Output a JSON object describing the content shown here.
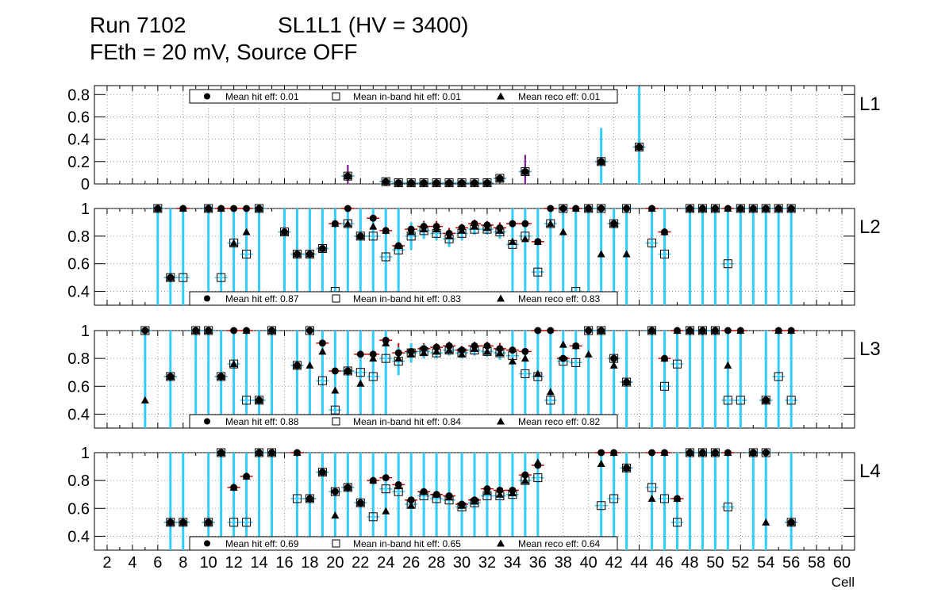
{
  "header": {
    "run": "Run 7102",
    "chamber": "SL1L1 (HV = 3400)",
    "conditions": "FEth = 20 mV, Source OFF"
  },
  "chart_data": {
    "type": "scatter",
    "xlabel": "Cell",
    "xlim": [
      1,
      61
    ],
    "x_ticks": [
      "2",
      "4",
      "6",
      "8",
      "10",
      "12",
      "14",
      "16",
      "18",
      "20",
      "22",
      "24",
      "26",
      "28",
      "30",
      "32",
      "34",
      "36",
      "38",
      "40",
      "42",
      "44",
      "46",
      "48",
      "50",
      "52",
      "54",
      "56",
      "58",
      "60"
    ],
    "colors": {
      "hit_err": "#cc0000",
      "reco_err": "#7a1fa2",
      "inband_err": "#33ccff"
    },
    "series_names": [
      "Mean hit  eff",
      "Mean in-band hit eff",
      "Mean reco eff"
    ],
    "panels": [
      {
        "label": "L1",
        "ylim": [
          0,
          0.88
        ],
        "y_ticks": [
          "0",
          "0.2",
          "0.4",
          "0.6",
          "0.8"
        ],
        "legend": [
          "Mean hit  eff: 0.01",
          "Mean in-band hit eff: 0.01",
          "Mean reco eff: 0.01"
        ],
        "cells": [
          21,
          24,
          25,
          26,
          27,
          28,
          29,
          30,
          31,
          32,
          33,
          35,
          41,
          44
        ],
        "hit": [
          0.07,
          0.02,
          0.01,
          0.01,
          0.01,
          0.01,
          0.01,
          0.01,
          0.01,
          0.01,
          0.05,
          0.11,
          0.2,
          0.33
        ],
        "hit_err": [
          0.1,
          0.02,
          0.01,
          0.01,
          0.01,
          0.01,
          0.01,
          0.01,
          0.01,
          0.01,
          0.02,
          0.15,
          0.3,
          0.5
        ],
        "inband": [
          0.07,
          0.02,
          0.01,
          0.01,
          0.01,
          0.01,
          0.01,
          0.01,
          0.01,
          0.01,
          0.05,
          0.11,
          0.2,
          0.33
        ],
        "inband_err": [
          0.02,
          0.02,
          0.01,
          0.01,
          0.01,
          0.01,
          0.01,
          0.01,
          0.01,
          0.01,
          0.02,
          0.03,
          0.3,
          0.54
        ],
        "reco": [
          0.07,
          0.02,
          0.01,
          0.01,
          0.01,
          0.01,
          0.01,
          0.01,
          0.01,
          0.01,
          0.05,
          0.11,
          0.2,
          0.33
        ]
      },
      {
        "label": "L2",
        "ylim": [
          0.3,
          1.0
        ],
        "y_ticks": [
          "0.4",
          "0.6",
          "0.8",
          "1"
        ],
        "legend": [
          "Mean hit  eff: 0.87",
          "Mean in-band hit eff: 0.83",
          "Mean reco eff: 0.83"
        ],
        "cells": [
          6,
          7,
          8,
          10,
          11,
          12,
          13,
          14,
          16,
          17,
          18,
          19,
          20,
          21,
          22,
          23,
          24,
          25,
          26,
          27,
          28,
          29,
          30,
          31,
          32,
          33,
          34,
          35,
          36,
          37,
          38,
          39,
          40,
          41,
          42,
          43,
          45,
          46,
          48,
          49,
          50,
          51,
          52,
          53,
          54,
          55,
          56
        ],
        "hit": [
          1.0,
          0.5,
          1.0,
          1.0,
          1.0,
          1.0,
          1.0,
          1.0,
          0.83,
          0.67,
          0.67,
          0.71,
          0.89,
          1.0,
          0.8,
          0.93,
          0.84,
          0.73,
          0.85,
          0.87,
          0.87,
          0.82,
          0.86,
          0.89,
          0.88,
          0.86,
          0.89,
          0.89,
          0.76,
          1.0,
          1.0,
          1.0,
          1.0,
          1.0,
          0.89,
          1.0,
          1.0,
          0.83,
          1.0,
          1.0,
          1.0,
          1.0,
          1.0,
          1.0,
          1.0,
          1.0,
          1.0
        ],
        "inband": [
          1.0,
          0.5,
          0.5,
          1.0,
          0.5,
          0.75,
          0.67,
          1.0,
          0.83,
          0.67,
          0.67,
          0.71,
          0.4,
          0.89,
          0.8,
          0.8,
          0.65,
          0.7,
          0.8,
          0.84,
          0.82,
          0.78,
          0.82,
          0.85,
          0.85,
          0.83,
          0.74,
          0.8,
          0.54,
          0.89,
          1.0,
          0.4,
          1.0,
          1.0,
          0.89,
          1.0,
          0.75,
          0.67,
          1.0,
          1.0,
          1.0,
          0.6,
          1.0,
          1.0,
          1.0,
          1.0,
          1.0
        ],
        "reco": [
          1.0,
          0.5,
          1.0,
          1.0,
          1.0,
          0.75,
          0.83,
          1.0,
          0.83,
          0.67,
          0.67,
          0.71,
          0.89,
          0.89,
          0.8,
          0.87,
          0.84,
          0.73,
          0.83,
          0.85,
          0.85,
          0.8,
          0.84,
          0.87,
          0.86,
          0.84,
          0.76,
          0.78,
          0.76,
          0.89,
          0.83,
          1.0,
          1.0,
          0.67,
          0.89,
          0.67,
          1.0,
          0.83,
          1.0,
          1.0,
          1.0,
          1.0,
          1.0,
          1.0,
          1.0,
          1.0,
          1.0
        ],
        "hit_err": [
          0.7,
          0.5,
          0.7,
          0.7,
          0.7,
          0.7,
          0.7,
          0.7,
          0.03,
          0.7,
          0.7,
          0.05,
          0.7,
          0.7,
          0.03,
          0.05,
          0.03,
          0.08,
          0.05,
          0.04,
          0.04,
          0.04,
          0.03,
          0.03,
          0.03,
          0.04,
          0.05,
          0.08,
          0.05,
          0.7,
          0.7,
          0.7,
          0.7,
          0.7,
          0.03,
          0.7,
          0.7,
          0.03,
          0.7,
          0.7,
          0.7,
          0.7,
          0.7,
          0.7,
          0.7,
          0.7,
          0.7
        ],
        "inband_err": [
          0.7,
          0.5,
          0.5,
          0.7,
          0.5,
          0.7,
          0.7,
          0.7,
          0.7,
          0.7,
          0.7,
          0.7,
          0.7,
          0.7,
          0.7,
          0.7,
          0.7,
          0.7,
          0.1,
          0.06,
          0.05,
          0.06,
          0.05,
          0.04,
          0.04,
          0.05,
          0.7,
          0.7,
          0.7,
          0.7,
          0.7,
          0.7,
          0.7,
          0.7,
          0.7,
          0.7,
          0.7,
          0.7,
          0.7,
          0.7,
          0.7,
          0.7,
          0.7,
          0.7,
          0.7,
          0.7,
          0.7
        ]
      },
      {
        "label": "L3",
        "ylim": [
          0.3,
          1.0
        ],
        "y_ticks": [
          "0.4",
          "0.6",
          "0.8",
          "1"
        ],
        "legend": [
          "Mean hit  eff: 0.88",
          "Mean in-band hit eff: 0.84",
          "Mean reco eff: 0.82"
        ],
        "cells": [
          5,
          7,
          9,
          10,
          11,
          12,
          13,
          14,
          15,
          17,
          18,
          19,
          20,
          21,
          22,
          23,
          24,
          25,
          26,
          27,
          28,
          29,
          30,
          31,
          32,
          33,
          34,
          35,
          36,
          37,
          38,
          39,
          40,
          41,
          42,
          43,
          45,
          46,
          47,
          48,
          49,
          50,
          51,
          52,
          54,
          55,
          56
        ],
        "hit": [
          1.0,
          0.67,
          1.0,
          1.0,
          0.67,
          1.0,
          1.0,
          0.5,
          1.0,
          0.75,
          1.0,
          0.91,
          0.71,
          0.71,
          0.83,
          0.83,
          0.93,
          0.84,
          0.85,
          0.87,
          0.88,
          0.89,
          0.86,
          0.89,
          0.89,
          0.87,
          0.86,
          0.85,
          1.0,
          1.0,
          0.8,
          0.89,
          1.0,
          1.0,
          0.8,
          0.63,
          1.0,
          0.8,
          1.0,
          1.0,
          1.0,
          1.0,
          1.0,
          1.0,
          0.5,
          1.0,
          1.0
        ],
        "inband": [
          1.0,
          0.67,
          1.0,
          1.0,
          0.67,
          0.76,
          0.5,
          0.5,
          1.0,
          0.75,
          1.0,
          0.64,
          0.43,
          0.71,
          0.7,
          0.67,
          0.8,
          0.78,
          0.84,
          0.85,
          0.84,
          0.86,
          0.84,
          0.86,
          0.85,
          0.84,
          0.82,
          0.69,
          0.67,
          0.5,
          0.78,
          0.77,
          1.0,
          1.0,
          0.8,
          0.63,
          1.0,
          0.6,
          0.76,
          1.0,
          1.0,
          1.0,
          0.5,
          0.5,
          0.5,
          0.67,
          0.5
        ],
        "reco": [
          0.5,
          0.67,
          1.0,
          1.0,
          0.67,
          0.76,
          1.0,
          0.5,
          1.0,
          0.75,
          0.75,
          0.85,
          0.57,
          0.71,
          0.62,
          0.8,
          0.91,
          0.8,
          0.83,
          0.84,
          0.85,
          0.86,
          0.83,
          0.87,
          0.85,
          0.84,
          0.78,
          0.8,
          0.69,
          0.56,
          0.9,
          0.89,
          0.83,
          1.0,
          0.75,
          0.63,
          1.0,
          0.8,
          1.0,
          1.0,
          1.0,
          1.0,
          0.75,
          1.0,
          0.5,
          1.0,
          1.0
        ],
        "hit_err": [
          0.7,
          0.7,
          0.7,
          0.7,
          0.7,
          0.7,
          0.7,
          0.7,
          0.7,
          0.7,
          0.7,
          0.05,
          0.7,
          0.7,
          0.05,
          0.05,
          0.04,
          0.07,
          0.05,
          0.04,
          0.03,
          0.03,
          0.03,
          0.03,
          0.03,
          0.04,
          0.04,
          0.05,
          0.7,
          0.7,
          0.7,
          0.7,
          0.7,
          0.7,
          0.7,
          0.05,
          0.7,
          0.7,
          0.7,
          0.7,
          0.7,
          0.7,
          0.7,
          0.7,
          0.7,
          0.7,
          0.7
        ],
        "inband_err": [
          0.7,
          0.7,
          0.7,
          0.7,
          0.7,
          0.7,
          0.7,
          0.7,
          0.7,
          0.7,
          0.7,
          0.7,
          0.7,
          0.7,
          0.7,
          0.7,
          0.7,
          0.1,
          0.07,
          0.05,
          0.04,
          0.04,
          0.04,
          0.04,
          0.04,
          0.05,
          0.7,
          0.7,
          0.7,
          0.7,
          0.7,
          0.7,
          0.7,
          0.7,
          0.7,
          0.7,
          0.7,
          0.7,
          0.7,
          0.7,
          0.7,
          0.7,
          0.7,
          0.7,
          0.7,
          0.7,
          0.7
        ]
      },
      {
        "label": "L4",
        "ylim": [
          0.3,
          1.0
        ],
        "y_ticks": [
          "0.4",
          "0.6",
          "0.8",
          "1"
        ],
        "legend": [
          "Mean hit  eff: 0.69",
          "Mean in-band hit eff: 0.65",
          "Mean reco eff: 0.64"
        ],
        "cells": [
          7,
          8,
          10,
          11,
          12,
          13,
          14,
          15,
          17,
          18,
          19,
          20,
          21,
          22,
          23,
          24,
          25,
          26,
          27,
          28,
          29,
          30,
          31,
          32,
          33,
          34,
          35,
          36,
          41,
          42,
          43,
          45,
          46,
          47,
          48,
          49,
          50,
          51,
          53,
          54,
          56
        ],
        "hit": [
          0.5,
          0.5,
          0.5,
          1.0,
          0.75,
          0.83,
          1.0,
          1.0,
          1.0,
          0.67,
          0.86,
          0.72,
          0.75,
          0.64,
          0.8,
          0.82,
          0.77,
          0.66,
          0.72,
          0.7,
          0.69,
          0.63,
          0.66,
          0.74,
          0.73,
          0.73,
          0.84,
          0.91,
          1.0,
          1.0,
          0.89,
          1.0,
          1.0,
          0.67,
          1.0,
          1.0,
          1.0,
          1.0,
          1.0,
          1.0,
          0.5
        ],
        "inband": [
          0.5,
          0.5,
          0.5,
          1.0,
          0.5,
          0.5,
          1.0,
          1.0,
          0.67,
          0.67,
          0.86,
          0.72,
          0.75,
          0.64,
          0.54,
          0.74,
          0.72,
          0.63,
          0.69,
          0.67,
          0.66,
          0.61,
          0.64,
          0.69,
          0.69,
          0.7,
          0.8,
          0.82,
          0.62,
          0.67,
          0.89,
          0.75,
          0.67,
          0.5,
          1.0,
          1.0,
          1.0,
          0.61,
          1.0,
          1.0,
          0.5
        ],
        "reco": [
          0.5,
          0.5,
          0.5,
          1.0,
          0.75,
          0.83,
          1.0,
          1.0,
          1.0,
          0.67,
          0.86,
          0.55,
          0.75,
          0.64,
          0.8,
          0.58,
          0.76,
          0.62,
          0.72,
          0.7,
          0.68,
          0.62,
          0.65,
          0.72,
          0.7,
          0.71,
          0.8,
          0.93,
          0.92,
          1.0,
          0.89,
          0.67,
          1.0,
          0.67,
          1.0,
          1.0,
          1.0,
          1.0,
          1.0,
          0.5,
          0.5
        ],
        "hit_err": [
          0.7,
          0.7,
          0.7,
          0.7,
          0.7,
          0.7,
          0.7,
          0.7,
          0.7,
          0.7,
          0.05,
          0.7,
          0.7,
          0.7,
          0.7,
          0.08,
          0.05,
          0.06,
          0.04,
          0.04,
          0.04,
          0.04,
          0.04,
          0.04,
          0.05,
          0.05,
          0.05,
          0.7,
          0.7,
          0.7,
          0.05,
          0.7,
          0.7,
          0.7,
          0.7,
          0.7,
          0.7,
          0.7,
          0.7,
          0.7,
          0.7
        ],
        "inband_err": [
          0.7,
          0.7,
          0.7,
          0.7,
          0.7,
          0.7,
          0.7,
          0.7,
          0.7,
          0.7,
          0.7,
          0.7,
          0.7,
          0.7,
          0.7,
          0.7,
          0.7,
          0.7,
          0.7,
          0.7,
          0.7,
          0.7,
          0.7,
          0.7,
          0.7,
          0.7,
          0.7,
          0.7,
          0.7,
          0.7,
          0.7,
          0.7,
          0.7,
          0.7,
          0.7,
          0.7,
          0.7,
          0.7,
          0.7,
          0.7,
          0.7
        ]
      }
    ]
  }
}
